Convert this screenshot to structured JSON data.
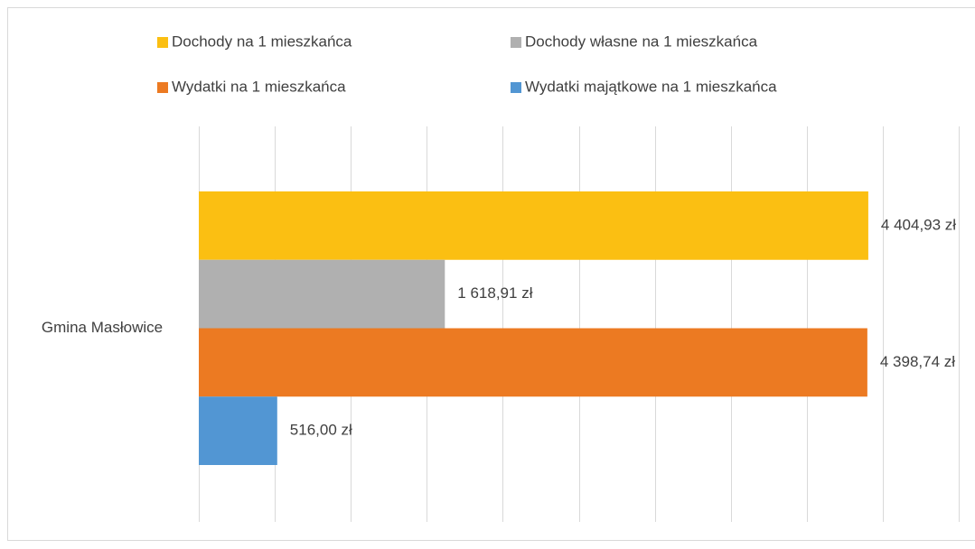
{
  "chart_data": {
    "type": "hbar",
    "categories": [
      "Gmina Masłowice"
    ],
    "series": [
      {
        "name": "Dochody na 1 mieszkańca",
        "color": "#fbbf12",
        "values": [
          4404.93
        ],
        "value_labels": [
          "4 404,93 zł"
        ]
      },
      {
        "name": "Dochody własne na 1 mieszkańca",
        "color": "#b0b0b0",
        "values": [
          1618.91
        ],
        "value_labels": [
          "1 618,91 zł"
        ]
      },
      {
        "name": "Wydatki na 1 mieszkańca",
        "color": "#ec7a22",
        "values": [
          4398.74
        ],
        "value_labels": [
          "4 398,74 zł"
        ]
      },
      {
        "name": "Wydatki majątkowe na 1 mieszkańca",
        "color": "#5296d3",
        "values": [
          516.0
        ],
        "value_labels": [
          "516,00 zł"
        ]
      }
    ],
    "xlim": [
      0,
      5000
    ],
    "xticks": [
      0,
      500,
      1000,
      1500,
      2000,
      2500,
      3000,
      3500,
      4000,
      4500,
      5000
    ],
    "grid": true,
    "legend": "top"
  }
}
